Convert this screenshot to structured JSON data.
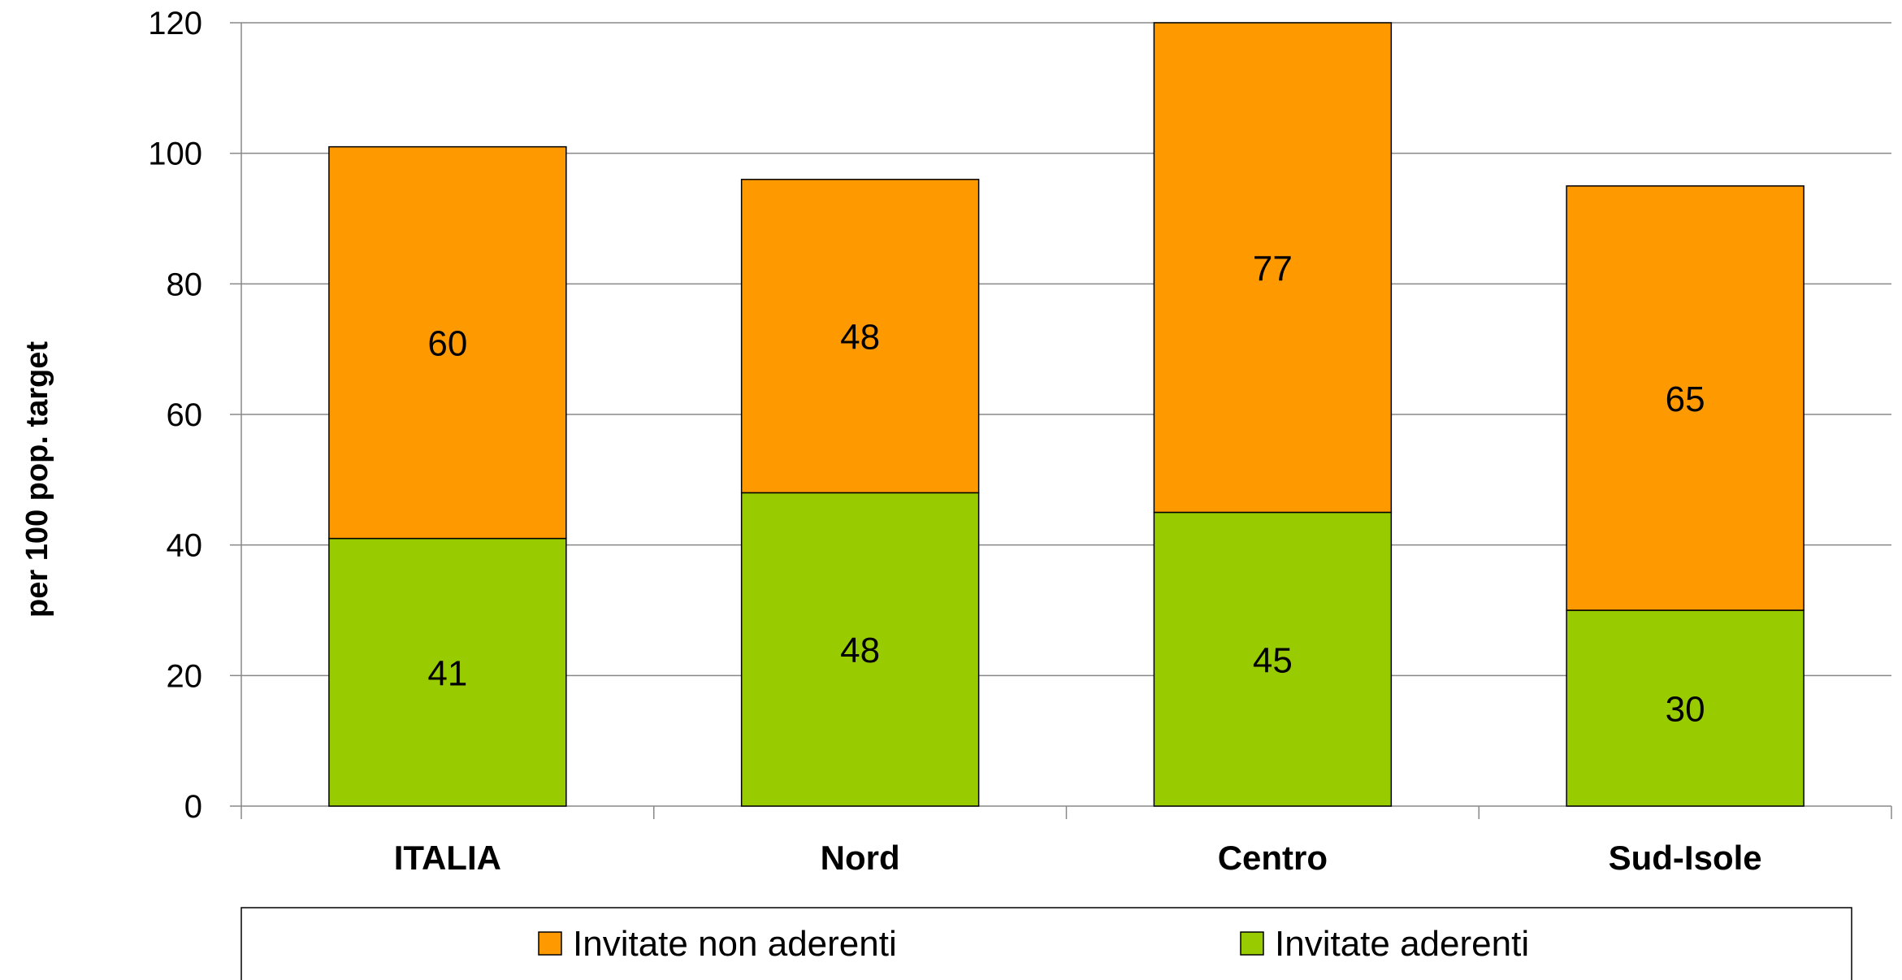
{
  "chart_data": {
    "type": "bar",
    "stacked": true,
    "categories": [
      "ITALIA",
      "Nord",
      "Centro",
      "Sud-Isole"
    ],
    "series": [
      {
        "name": "Invitate aderenti",
        "values": [
          41,
          48,
          45,
          30
        ],
        "color": "#99cc00"
      },
      {
        "name": "Invitate non aderenti",
        "values": [
          60,
          48,
          77,
          65
        ],
        "color": "#ff9900"
      }
    ],
    "ylabel": "per 100 pop. target",
    "xlabel": "",
    "ylim": [
      0,
      120
    ],
    "yticks": [
      0,
      20,
      40,
      60,
      80,
      100,
      120
    ],
    "grid": true,
    "legend_position": "bottom",
    "legend_order": [
      "Invitate non aderenti",
      "Invitate aderenti"
    ]
  }
}
